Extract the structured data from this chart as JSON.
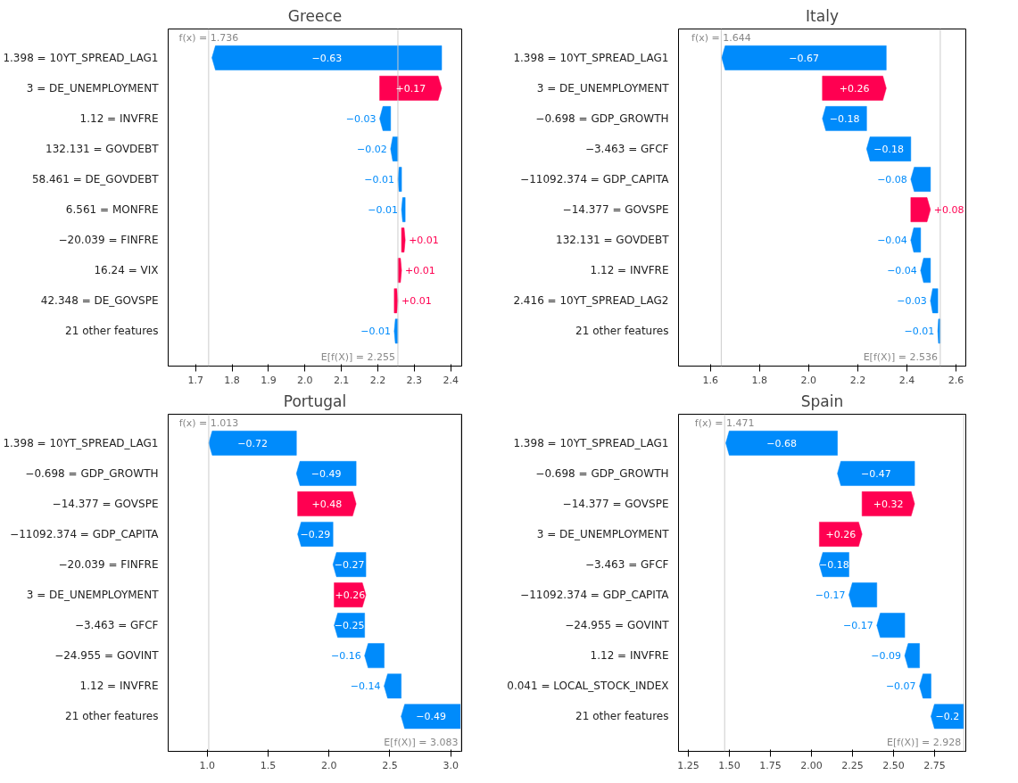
{
  "chart_data": [
    {
      "type": "bar",
      "orientation": "horizontal",
      "title": "Greece",
      "categories": [
        "1.398 = 10YT_SPREAD_LAG1",
        "3 = DE_UNEMPLOYMENT",
        "1.12 = INVFRE",
        "132.131 = GOVDEBT",
        "58.461 = DE_GOVDEBT",
        "6.561 = MONFRE",
        "−20.039 = FINFRE",
        "16.24 = VIX",
        "42.348 = DE_GOVSPE",
        "21 other features"
      ],
      "values": [
        -0.63,
        0.17,
        -0.03,
        -0.02,
        -0.01,
        -0.01,
        0.01,
        0.01,
        0.01,
        -0.01
      ],
      "base": [
        2.375,
        2.205,
        2.235,
        2.255,
        2.265,
        2.275,
        2.265,
        2.255,
        2.245,
        2.255
      ],
      "colors": [
        "#008bfb",
        "#ff0051",
        "#008bfb",
        "#008bfb",
        "#008bfb",
        "#008bfb",
        "#ff0051",
        "#ff0051",
        "#ff0051",
        "#008bfb"
      ],
      "value_labels": [
        "−0.63",
        "+0.17",
        "−0.03",
        "−0.02",
        "−0.01",
        "−0.01",
        "+0.01",
        "+0.01",
        "+0.01",
        "−0.01"
      ],
      "xlim": [
        1.625,
        2.43
      ],
      "xticks": [
        1.7,
        1.8,
        1.9,
        {
          "value": 2.0,
          "label": "2.0"
        },
        2.1,
        2.2,
        2.3,
        2.4
      ],
      "ref_lines": [
        {
          "axis": "x",
          "value": 1.736,
          "label": "f(x) = 1.736"
        },
        {
          "axis": "x",
          "value": 2.255,
          "label": "E[f(X)] = 2.255"
        }
      ]
    },
    {
      "type": "bar",
      "orientation": "horizontal",
      "title": "Italy",
      "categories": [
        "1.398 = 10YT_SPREAD_LAG1",
        "3 = DE_UNEMPLOYMENT",
        "−0.698 = GDP_GROWTH",
        "−3.463 = GFCF",
        "−11092.374 = GDP_CAPITA",
        "−14.377 = GOVSPE",
        "132.131 = GOVDEBT",
        "1.12 = INVFRE",
        "2.416 = 10YT_SPREAD_LAG2",
        "21 other features"
      ],
      "values": [
        -0.67,
        0.26,
        -0.18,
        -0.18,
        -0.08,
        0.08,
        -0.04,
        -0.04,
        -0.03,
        -0.01
      ],
      "base": [
        2.316,
        2.056,
        2.236,
        2.416,
        2.496,
        2.416,
        2.456,
        2.496,
        2.526,
        2.536
      ],
      "colors": [
        "#008bfb",
        "#ff0051",
        "#008bfb",
        "#008bfb",
        "#008bfb",
        "#ff0051",
        "#008bfb",
        "#008bfb",
        "#008bfb",
        "#008bfb"
      ],
      "value_labels": [
        "−0.67",
        "+0.26",
        "−0.18",
        "−0.18",
        "−0.08",
        "+0.08",
        "−0.04",
        "−0.04",
        "−0.03",
        "−0.01"
      ],
      "xlim": [
        1.47,
        2.64
      ],
      "xticks": [
        1.6,
        1.8,
        {
          "value": 2.0,
          "label": "2.0"
        },
        2.2,
        2.4,
        2.6
      ],
      "ref_lines": [
        {
          "axis": "x",
          "value": 1.644,
          "label": "f(x) = 1.644"
        },
        {
          "axis": "x",
          "value": 2.536,
          "label": "E[f(X)] = 2.536"
        }
      ]
    },
    {
      "type": "bar",
      "orientation": "horizontal",
      "title": "Portugal",
      "categories": [
        "1.398 = 10YT_SPREAD_LAG1",
        "−0.698 = GDP_GROWTH",
        "−14.377 = GOVSPE",
        "−11092.374 = GDP_CAPITA",
        "−20.039 = FINFRE",
        "3 = DE_UNEMPLOYMENT",
        "−3.463 = GFCF",
        "−24.955 = GOVINT",
        "1.12 = INVFRE",
        "21 other features"
      ],
      "values": [
        -0.72,
        -0.49,
        0.48,
        -0.29,
        -0.27,
        0.26,
        -0.25,
        -0.16,
        -0.14,
        -0.49
      ],
      "base": [
        1.733,
        2.223,
        1.743,
        2.033,
        2.303,
        2.043,
        2.293,
        2.453,
        2.593,
        3.083
      ],
      "colors": [
        "#008bfb",
        "#008bfb",
        "#ff0051",
        "#008bfb",
        "#008bfb",
        "#ff0051",
        "#008bfb",
        "#008bfb",
        "#008bfb",
        "#008bfb"
      ],
      "value_labels": [
        "−0.72",
        "−0.49",
        "+0.48",
        "−0.29",
        "−0.27",
        "+0.26",
        "−0.25",
        "−0.16",
        "−0.14",
        "−0.49"
      ],
      "xlim": [
        0.68,
        3.09
      ],
      "xticks": [
        {
          "value": 1.0,
          "label": "1.0"
        },
        1.5,
        {
          "value": 2.0,
          "label": "2.0"
        },
        2.5,
        {
          "value": 3.0,
          "label": "3.0"
        }
      ],
      "ref_lines": [
        {
          "axis": "x",
          "value": 1.013,
          "label": "f(x) = 1.013"
        },
        {
          "axis": "x",
          "value": 3.083,
          "label": "E[f(X)] = 3.083"
        }
      ]
    },
    {
      "type": "bar",
      "orientation": "horizontal",
      "title": "Spain",
      "categories": [
        "1.398 = 10YT_SPREAD_LAG1",
        "−0.698 = GDP_GROWTH",
        "−14.377 = GOVSPE",
        "3 = DE_UNEMPLOYMENT",
        "−3.463 = GFCF",
        "−11092.374 = GDP_CAPITA",
        "−24.955 = GOVINT",
        "1.12 = INVFRE",
        "0.041 = LOCAL_STOCK_INDEX",
        "21 other features"
      ],
      "values": [
        -0.68,
        -0.47,
        0.32,
        0.26,
        -0.18,
        -0.17,
        -0.17,
        -0.09,
        -0.07,
        -0.2
      ],
      "base": [
        2.158,
        2.628,
        2.308,
        2.048,
        2.228,
        2.398,
        2.568,
        2.658,
        2.728,
        2.928
      ],
      "colors": [
        "#008bfb",
        "#008bfb",
        "#ff0051",
        "#ff0051",
        "#008bfb",
        "#008bfb",
        "#008bfb",
        "#008bfb",
        "#008bfb",
        "#008bfb"
      ],
      "value_labels": [
        "−0.68",
        "−0.47",
        "+0.32",
        "+0.26",
        "−0.18",
        "−0.17",
        "−0.17",
        "−0.09",
        "−0.07",
        "−0.2"
      ],
      "xlim": [
        1.19,
        2.94
      ],
      "xticks": [
        1.25,
        {
          "value": 1.5,
          "label": "1.50"
        },
        1.75,
        {
          "value": 2.0,
          "label": "2.00"
        },
        2.25,
        {
          "value": 2.5,
          "label": "2.50"
        },
        2.75
      ],
      "ref_lines": [
        {
          "axis": "x",
          "value": 1.471,
          "label": "f(x) = 1.471"
        },
        {
          "axis": "x",
          "value": 2.928,
          "label": "E[f(X)] = 2.928"
        }
      ]
    }
  ]
}
